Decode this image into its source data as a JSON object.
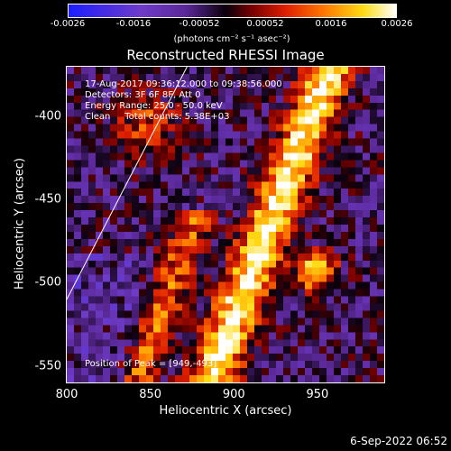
{
  "colorbar": {
    "ticks": [
      "-0.0026",
      "-0.0016",
      "-0.00052",
      "0.00052",
      "0.0016",
      "0.0026"
    ],
    "unit_label": "(photons cm⁻² s⁻¹ asec⁻²)",
    "range": [
      -0.0026,
      0.0026
    ]
  },
  "chart_data": {
    "type": "heatmap",
    "title": "Reconstructed RHESSI Image",
    "xlabel": "Heliocentric X (arcsec)",
    "ylabel": "Heliocentric Y (arcsec)",
    "xlim": [
      800,
      990
    ],
    "ylim": [
      -560,
      -370
    ],
    "x_ticks": [
      "800",
      "850",
      "900",
      "950"
    ],
    "x_tick_values": [
      800,
      850,
      900,
      950
    ],
    "y_ticks": [
      "-400",
      "-450",
      "-500",
      "-550"
    ],
    "y_tick_values": [
      -400,
      -450,
      -500,
      -550
    ],
    "peak": {
      "x": 949,
      "y": -493
    },
    "colormap": "blue-purple-black-red-orange-yellow-white",
    "limb_line": {
      "from": [
        800,
        -510
      ],
      "to": [
        872,
        -370
      ]
    }
  },
  "info": {
    "line1": "17-Aug-2017 09:36:12.000 to 09:38:56.000",
    "line2": "Detectors: 3F 6F 8F, Att 0",
    "line3": "Energy Range: 25.0 - 50.0 keV",
    "line4": "Clean     Total counts: 5.38E+03",
    "peak_text": "Position of Peak = [949,-493]"
  },
  "footer": {
    "date": "6-Sep-2022 06:52"
  }
}
